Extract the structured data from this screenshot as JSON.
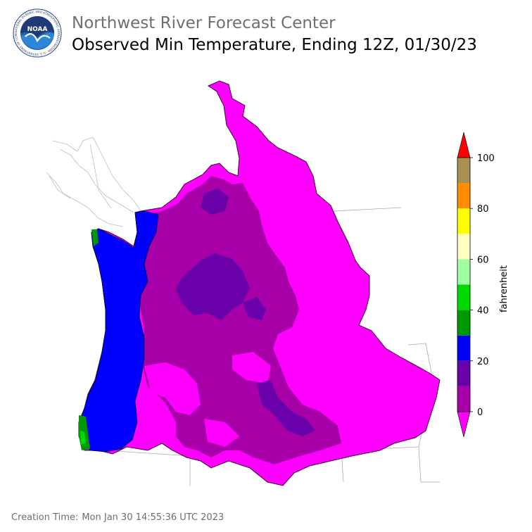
{
  "header": {
    "org_title": "Northwest River Forecast Center",
    "product_title": "Observed Min Temperature, Ending 12Z, 01/30/23"
  },
  "logo": {
    "name": "noaa-logo",
    "text": "NOAA",
    "ring_text": "NATIONAL OCEANIC AND ATMOSPHERIC ADMINISTRATION · U.S. DEPARTMENT OF COMMERCE"
  },
  "colorbar": {
    "unit_label": "fahrenheit",
    "ticks": [
      "0",
      "20",
      "40",
      "60",
      "80",
      "100"
    ],
    "bins": [
      {
        "from": 0,
        "to": 10,
        "color": "#a800a8"
      },
      {
        "from": 10,
        "to": 20,
        "color": "#6a00aa"
      },
      {
        "from": 20,
        "to": 30,
        "color": "#0000ff"
      },
      {
        "from": 30,
        "to": 40,
        "color": "#009800"
      },
      {
        "from": 40,
        "to": 50,
        "color": "#00d800"
      },
      {
        "from": 50,
        "to": 60,
        "color": "#a0ffa0"
      },
      {
        "from": 60,
        "to": 70,
        "color": "#ffffc0"
      },
      {
        "from": 70,
        "to": 80,
        "color": "#ffff00"
      },
      {
        "from": 80,
        "to": 90,
        "color": "#ff8c00"
      },
      {
        "from": 90,
        "to": 100,
        "color": "#a89050"
      }
    ],
    "under_color": "#ff00ff",
    "over_color": "#ff0000"
  },
  "footer": {
    "creation_label": "Creation Time:",
    "creation_value": "Mon Jan 30 14:55:36 UTC 2023"
  }
}
